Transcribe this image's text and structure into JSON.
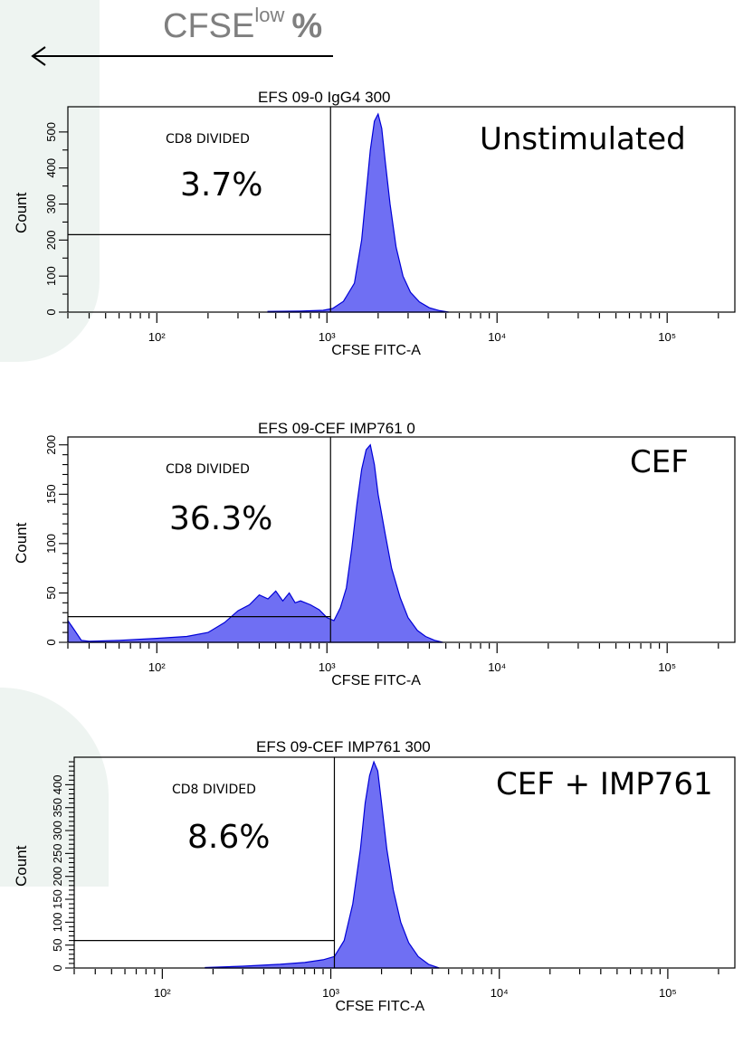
{
  "header": {
    "title_main": "CFSE",
    "title_sup": "low",
    "title_suffix": "%"
  },
  "chart_data": [
    {
      "type": "area",
      "title": "EFS 09-0 IgG4 300",
      "condition": "Unstimulated",
      "gate_label": "CD8 DIVIDED",
      "gate_value": "3.7%",
      "xlabel": "CFSE FITC-A",
      "ylabel": "Count",
      "x_scale": "log",
      "xlim": [
        30,
        250000
      ],
      "ylim": [
        0,
        570
      ],
      "x_ticks": [
        100,
        1000,
        10000,
        100000
      ],
      "x_tick_labels": [
        "10²",
        "10³",
        "10⁴",
        "10⁵"
      ],
      "y_ticks": [
        0,
        50,
        100,
        150,
        200,
        250,
        300,
        350,
        400,
        450,
        500
      ],
      "y_tick_labels": [
        "0",
        "100",
        "200",
        "300",
        "400",
        "500"
      ],
      "gate_x": 1050,
      "gate_y": 215,
      "x": [
        450,
        700,
        950,
        1080,
        1250,
        1450,
        1600,
        1700,
        1800,
        1900,
        2000,
        2100,
        2200,
        2350,
        2550,
        2800,
        3100,
        3500,
        4000,
        4600,
        5200
      ],
      "y": [
        2,
        3,
        5,
        10,
        30,
        80,
        200,
        330,
        450,
        530,
        550,
        510,
        420,
        300,
        180,
        100,
        55,
        28,
        12,
        4,
        0
      ]
    },
    {
      "type": "area",
      "title": "EFS 09-CEF IMP761 0",
      "condition": "CEF",
      "gate_label": "CD8 DIVIDED",
      "gate_value": "36.3%",
      "xlabel": "CFSE FITC-A",
      "ylabel": "Count",
      "x_scale": "log",
      "xlim": [
        30,
        250000
      ],
      "ylim": [
        0,
        208
      ],
      "x_ticks": [
        100,
        1000,
        10000,
        100000
      ],
      "x_tick_labels": [
        "10²",
        "10³",
        "10⁴",
        "10⁵"
      ],
      "y_ticks": [
        0,
        10,
        20,
        30,
        40,
        50,
        60,
        70,
        80,
        90,
        100,
        110,
        120,
        130,
        140,
        150,
        160,
        170,
        180,
        190,
        200
      ],
      "y_tick_labels": [
        "0",
        "50",
        "100",
        "150",
        "200"
      ],
      "gate_x": 1050,
      "gate_y": 26,
      "x": [
        30,
        32,
        36,
        40,
        60,
        100,
        150,
        200,
        250,
        300,
        350,
        400,
        450,
        500,
        550,
        600,
        650,
        700,
        800,
        900,
        1000,
        1100,
        1200,
        1300,
        1400,
        1500,
        1600,
        1700,
        1800,
        1900,
        2000,
        2200,
        2400,
        2700,
        3000,
        3400,
        3800,
        4300,
        4800
      ],
      "y": [
        22,
        15,
        2,
        1,
        2,
        4,
        6,
        10,
        20,
        32,
        38,
        48,
        44,
        52,
        42,
        50,
        40,
        42,
        38,
        33,
        25,
        22,
        35,
        55,
        95,
        140,
        175,
        195,
        200,
        180,
        150,
        110,
        75,
        45,
        25,
        12,
        6,
        2,
        0
      ]
    },
    {
      "type": "area",
      "title": "EFS 09-CEF IMP761 300",
      "condition": "CEF + IMP761",
      "gate_label": "CD8 DIVIDED",
      "gate_value": "8.6%",
      "xlabel": "CFSE FITC-A",
      "ylabel": "Count",
      "x_scale": "log",
      "xlim": [
        30,
        250000
      ],
      "ylim": [
        0,
        460
      ],
      "x_ticks": [
        100,
        1000,
        10000,
        100000
      ],
      "x_tick_labels": [
        "10²",
        "10³",
        "10⁴",
        "10⁵"
      ],
      "y_ticks": [
        0,
        10,
        20,
        30,
        40,
        50,
        60,
        70,
        80,
        90,
        100,
        110,
        120,
        130,
        140,
        150,
        160,
        170,
        180,
        190,
        200,
        210,
        220,
        230,
        240,
        250,
        260,
        270,
        280,
        290,
        300,
        310,
        320,
        330,
        340,
        350,
        360,
        370,
        380,
        390,
        400,
        410,
        420,
        430,
        440,
        450
      ],
      "y_tick_labels": [
        "0",
        "50",
        "100",
        "150",
        "200",
        "250",
        "300",
        "350",
        "400"
      ],
      "gate_x": 1050,
      "gate_y": 60,
      "x": [
        180,
        300,
        500,
        700,
        900,
        1050,
        1200,
        1350,
        1500,
        1600,
        1700,
        1800,
        1900,
        2000,
        2150,
        2350,
        2600,
        2900,
        3300,
        3800,
        4400
      ],
      "y": [
        1,
        4,
        8,
        12,
        18,
        25,
        60,
        140,
        260,
        360,
        420,
        450,
        430,
        360,
        260,
        170,
        100,
        55,
        25,
        8,
        0
      ]
    }
  ]
}
